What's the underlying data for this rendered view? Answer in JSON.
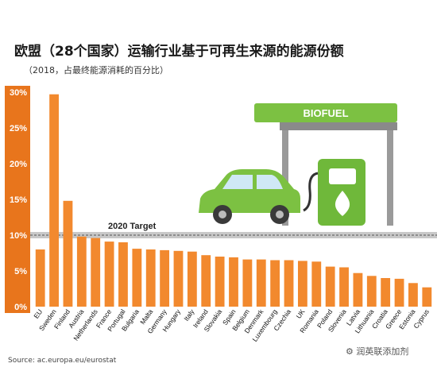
{
  "page": {
    "title": "欧盟（28个国家）运输行业基于可再生来源的能源份额",
    "subtitle": "（2018，占最终能源消耗的百分比）",
    "source": "Source: ac.europa.eu/eurostat",
    "watermark": "润英联添加剂"
  },
  "illustration": {
    "sign_text": "BIOFUEL"
  },
  "colors": {
    "bar": "#f2892e",
    "axis_box": "#e8751c",
    "target_band": "#c8c8c8",
    "car": "#7cc142",
    "pump": "#6fb83a"
  },
  "chart_data": {
    "type": "bar",
    "categories": [
      "EU",
      "Sweden",
      "Finland",
      "Austria",
      "Netherlands",
      "France",
      "Portugal",
      "Bulgaria",
      "Malta",
      "Germany",
      "Hungary",
      "Italy",
      "Ireland",
      "Slovakia",
      "Spain",
      "Belgium",
      "Denmark",
      "Luxembourg",
      "Czechia",
      "UK",
      "Romania",
      "Poland",
      "Slovenia",
      "Latvia",
      "Lithuania",
      "Croatia",
      "Greece",
      "Estonia",
      "Cyprus"
    ],
    "values": [
      8.0,
      29.7,
      14.8,
      9.8,
      9.6,
      9.1,
      9.0,
      8.1,
      8.0,
      7.9,
      7.8,
      7.7,
      7.2,
      7.0,
      6.9,
      6.6,
      6.6,
      6.5,
      6.5,
      6.4,
      6.3,
      5.6,
      5.5,
      4.7,
      4.3,
      4.0,
      3.9,
      3.3,
      2.7
    ],
    "ylim": [
      0,
      30
    ],
    "yticks": [
      "0%",
      "5%",
      "10%",
      "15%",
      "20%",
      "25%",
      "30%"
    ],
    "ytick_values": [
      0,
      5,
      10,
      15,
      20,
      25,
      30
    ],
    "target_value": 10,
    "target_label": "2020 Target",
    "grid": false
  }
}
